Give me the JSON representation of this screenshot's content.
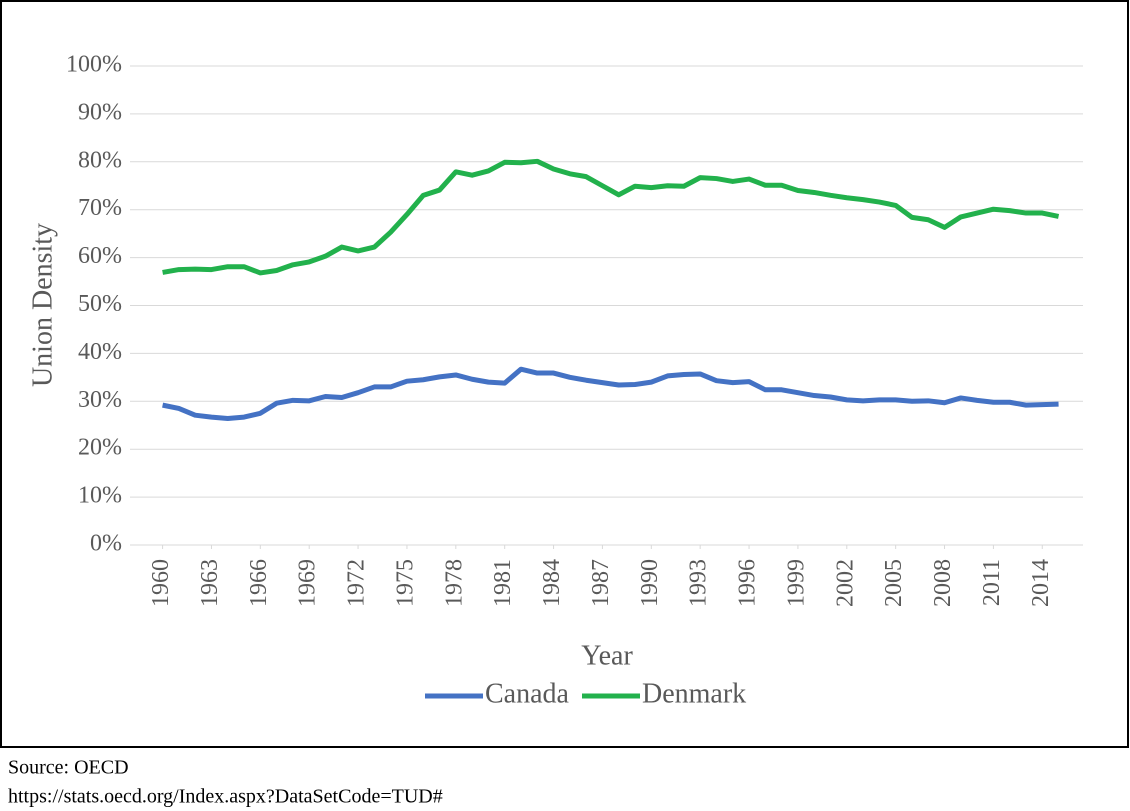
{
  "chart_data": {
    "type": "line",
    "x_label": "Year",
    "y_label": "Union Density",
    "x": [
      1960,
      1961,
      1962,
      1963,
      1964,
      1965,
      1966,
      1967,
      1968,
      1969,
      1970,
      1971,
      1972,
      1973,
      1974,
      1975,
      1976,
      1977,
      1978,
      1979,
      1980,
      1981,
      1982,
      1983,
      1984,
      1985,
      1986,
      1987,
      1988,
      1989,
      1990,
      1991,
      1992,
      1993,
      1994,
      1995,
      1996,
      1997,
      1998,
      1999,
      2000,
      2001,
      2002,
      2003,
      2004,
      2005,
      2006,
      2007,
      2008,
      2009,
      2010,
      2011,
      2012,
      2013,
      2014,
      2015
    ],
    "xlim": [
      1958,
      2016.5
    ],
    "xticks": [
      1960,
      1963,
      1966,
      1969,
      1972,
      1975,
      1978,
      1981,
      1984,
      1987,
      1990,
      1993,
      1996,
      1999,
      2002,
      2005,
      2008,
      2011,
      2014
    ],
    "ylim": [
      0,
      100
    ],
    "yticks": [
      {
        "value": 0,
        "label": "0%"
      },
      {
        "value": 10,
        "label": "10%"
      },
      {
        "value": 20,
        "label": "20%"
      },
      {
        "value": 30,
        "label": "30%"
      },
      {
        "value": 40,
        "label": "40%"
      },
      {
        "value": 50,
        "label": "50%"
      },
      {
        "value": 60,
        "label": "60%"
      },
      {
        "value": 70,
        "label": "70%"
      },
      {
        "value": 80,
        "label": "80%"
      },
      {
        "value": 90,
        "label": "90%"
      },
      {
        "value": 100,
        "label": "100%"
      }
    ],
    "grid": true,
    "legend": "bottom",
    "series": [
      {
        "name": "Canada",
        "color": "#4472c4",
        "values": [
          29.2,
          28.5,
          27.1,
          26.7,
          26.4,
          26.7,
          27.5,
          29.6,
          30.2,
          30.1,
          31.0,
          30.8,
          31.8,
          33.0,
          33.0,
          34.2,
          34.5,
          35.1,
          35.5,
          34.6,
          34.0,
          33.8,
          36.7,
          35.9,
          35.9,
          35.0,
          34.4,
          33.9,
          33.4,
          33.5,
          34.0,
          35.3,
          35.6,
          35.7,
          34.3,
          33.9,
          34.1,
          32.4,
          32.4,
          31.8,
          31.2,
          30.9,
          30.3,
          30.1,
          30.3,
          30.3,
          30.0,
          30.1,
          29.7,
          30.7,
          30.2,
          29.8,
          29.8,
          29.2,
          29.3,
          29.4
        ]
      },
      {
        "name": "Denmark",
        "color": "#22b14c",
        "values": [
          56.9,
          57.5,
          57.6,
          57.5,
          58.1,
          58.1,
          56.8,
          57.3,
          58.5,
          59.1,
          60.3,
          62.2,
          61.4,
          62.2,
          65.3,
          69.0,
          73.0,
          74.1,
          77.9,
          77.2,
          78.1,
          79.9,
          79.8,
          80.1,
          78.5,
          77.5,
          76.9,
          75.0,
          73.1,
          74.9,
          74.6,
          75.0,
          74.9,
          76.7,
          76.5,
          75.9,
          76.4,
          75.1,
          75.1,
          74.0,
          73.6,
          73.0,
          72.5,
          72.1,
          71.6,
          70.9,
          68.4,
          67.9,
          66.3,
          68.5,
          69.3,
          70.1,
          69.8,
          69.3,
          69.3,
          68.6
        ]
      }
    ],
    "source": [
      "Source: OECD",
      "https://stats.oecd.org/Index.aspx?DataSetCode=TUD#"
    ]
  }
}
